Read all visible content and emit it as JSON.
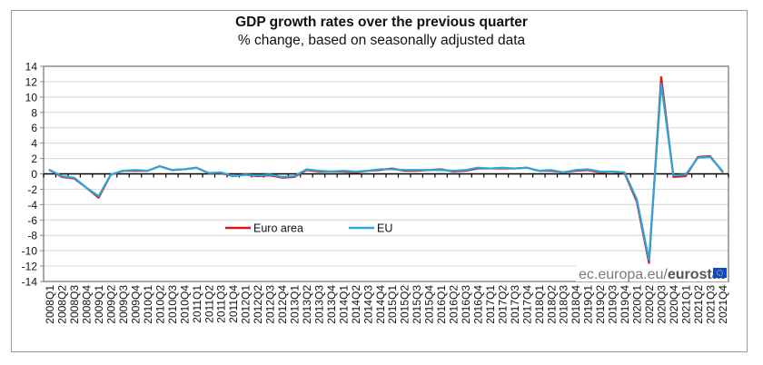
{
  "chart_data": {
    "type": "line",
    "title": "GDP growth rates over the previous quarter",
    "subtitle": "% change, based on seasonally adjusted data",
    "xlabel": "",
    "ylabel": "",
    "ylim": [
      -14,
      14
    ],
    "yticks": [
      14,
      12,
      10,
      8,
      6,
      4,
      2,
      0,
      -2,
      -4,
      -6,
      -8,
      -10,
      -12,
      -14
    ],
    "grid": true,
    "legend_position": "center-left, inside plot",
    "categories": [
      "2008Q1",
      "2008Q2",
      "2008Q3",
      "2008Q4",
      "2009Q1",
      "2009Q2",
      "2009Q3",
      "2009Q4",
      "2010Q1",
      "2010Q2",
      "2010Q3",
      "2010Q4",
      "2011Q1",
      "2011Q2",
      "2011Q3",
      "2011Q4",
      "2012Q1",
      "2012Q2",
      "2012Q3",
      "2012Q4",
      "2013Q1",
      "2013Q2",
      "2013Q3",
      "2013Q4",
      "2014Q1",
      "2014Q2",
      "2014Q3",
      "2014Q4",
      "2015Q1",
      "2015Q2",
      "2015Q3",
      "2015Q4",
      "2016Q1",
      "2016Q2",
      "2016Q3",
      "2016Q4",
      "2017Q1",
      "2017Q2",
      "2017Q3",
      "2017Q4",
      "2018Q1",
      "2018Q2",
      "2018Q3",
      "2018Q4",
      "2019Q1",
      "2019Q2",
      "2019Q3",
      "2019Q4",
      "2020Q1",
      "2020Q2",
      "2020Q3",
      "2020Q4",
      "2021Q1",
      "2021Q2",
      "2021Q3",
      "2021Q4"
    ],
    "series": [
      {
        "name": "Euro area",
        "color": "#d7191c",
        "values": [
          0.5,
          -0.4,
          -0.6,
          -1.8,
          -3.1,
          -0.1,
          0.4,
          0.4,
          0.4,
          1.0,
          0.5,
          0.6,
          0.8,
          0.1,
          0.1,
          -0.3,
          -0.1,
          -0.3,
          -0.2,
          -0.5,
          -0.4,
          0.5,
          0.3,
          0.3,
          0.3,
          0.2,
          0.4,
          0.5,
          0.7,
          0.4,
          0.4,
          0.5,
          0.6,
          0.3,
          0.4,
          0.7,
          0.7,
          0.7,
          0.7,
          0.8,
          0.4,
          0.4,
          0.2,
          0.4,
          0.5,
          0.2,
          0.3,
          0.1,
          -3.6,
          -11.6,
          12.6,
          -0.4,
          -0.3,
          2.2,
          2.3,
          0.3
        ]
      },
      {
        "name": "EU",
        "color": "#2aa6d8",
        "values": [
          0.5,
          -0.3,
          -0.5,
          -1.8,
          -2.9,
          -0.1,
          0.4,
          0.5,
          0.4,
          1.0,
          0.5,
          0.6,
          0.8,
          0.1,
          0.2,
          -0.3,
          -0.1,
          -0.2,
          -0.1,
          -0.4,
          -0.3,
          0.6,
          0.4,
          0.3,
          0.4,
          0.3,
          0.4,
          0.6,
          0.6,
          0.5,
          0.5,
          0.5,
          0.5,
          0.4,
          0.5,
          0.8,
          0.7,
          0.8,
          0.7,
          0.8,
          0.4,
          0.5,
          0.2,
          0.5,
          0.6,
          0.3,
          0.3,
          0.2,
          -3.3,
          -11.2,
          11.7,
          -0.2,
          -0.1,
          2.1,
          2.2,
          0.4
        ]
      }
    ],
    "source_watermark": {
      "prefix": "ec.europa.eu/",
      "brand": "eurostat",
      "flag_color": "#0e47cb",
      "star_color": "#ffdd00"
    }
  }
}
